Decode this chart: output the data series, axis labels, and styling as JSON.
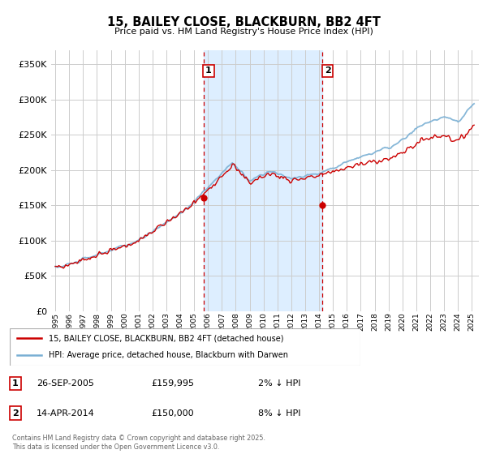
{
  "title": "15, BAILEY CLOSE, BLACKBURN, BB2 4FT",
  "subtitle": "Price paid vs. HM Land Registry's House Price Index (HPI)",
  "legend_line1": "15, BAILEY CLOSE, BLACKBURN, BB2 4FT (detached house)",
  "legend_line2": "HPI: Average price, detached house, Blackburn with Darwen",
  "sale1_t": 2005.667,
  "sale1_price": 159995,
  "sale1_text": "26-SEP-2005",
  "sale1_pct": "2% ↓ HPI",
  "sale2_t": 2014.25,
  "sale2_price": 150000,
  "sale2_text": "14-APR-2014",
  "sale2_pct": "8% ↓ HPI",
  "footer": "Contains HM Land Registry data © Crown copyright and database right 2025.\nThis data is licensed under the Open Government Licence v3.0.",
  "price_color": "#cc0000",
  "hpi_color": "#7ab0d4",
  "shade_color": "#ddeeff",
  "vline_color": "#cc0000",
  "grid_color": "#cccccc",
  "bg_color": "#ffffff",
  "yticks": [
    0,
    50000,
    100000,
    150000,
    200000,
    250000,
    300000,
    350000
  ],
  "ylim": [
    0,
    370000
  ],
  "xlim_start": 1994.7,
  "xlim_end": 2025.5,
  "xtick_years": [
    1995,
    1996,
    1997,
    1998,
    1999,
    2000,
    2001,
    2002,
    2003,
    2004,
    2005,
    2006,
    2007,
    2008,
    2009,
    2010,
    2011,
    2012,
    2013,
    2014,
    2015,
    2016,
    2017,
    2018,
    2019,
    2020,
    2021,
    2022,
    2023,
    2024,
    2025
  ]
}
